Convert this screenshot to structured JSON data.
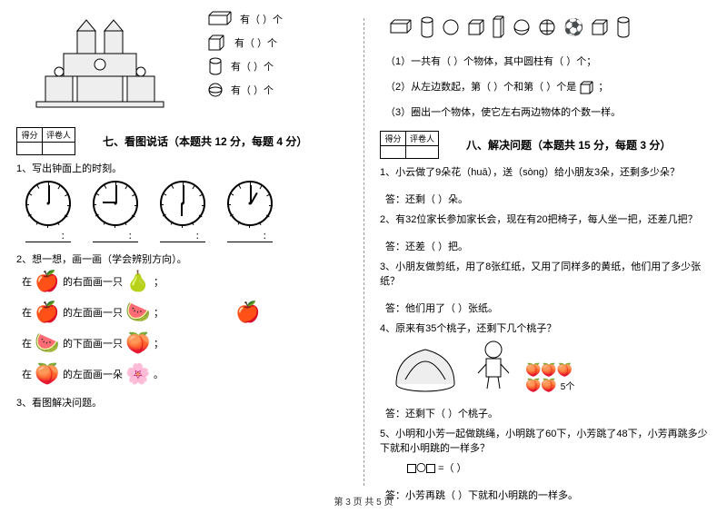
{
  "footer": "第 3 页 共 5 页",
  "left": {
    "shapes": {
      "cuboid": "有（      ）个",
      "cube": "有（      ）个",
      "cylinder": "有（      ）个",
      "sphere": "有（      ）个"
    },
    "score": {
      "c1": "得分",
      "c2": "评卷人"
    },
    "section7": "七、看图说话（本题共 12 分，每题 4 分）",
    "q1": "1、写出钟面上的时刻。",
    "colon": "：",
    "q2": "2、想一想，画一画（学会辨别方向）。",
    "fruit": {
      "r1a": "在",
      "r1b": "的右面画一只",
      "r1c": "；",
      "r2a": "在",
      "r2b": "的左面画一只",
      "r2c": "；",
      "r3a": "在",
      "r3b": "的下面画一只",
      "r3c": "；",
      "r4a": "在",
      "r4b": "的左面画一朵",
      "r4c": "。"
    },
    "q3": "3、看图解决问题。"
  },
  "right": {
    "top": {
      "l1": "（1）一共有（    ）个物体，其中圆柱有（    ）个；",
      "l2a": "（2）从左边数起，第（    ）个和第（    ）个是",
      "l2b": "；",
      "l3": "（3）圈出一个物体，使它左右两边物体的个数一样。"
    },
    "score": {
      "c1": "得分",
      "c2": "评卷人"
    },
    "section8": "八、解决问题（本题共 15 分，每题 3 分）",
    "q1": "1、小云做了9朵花（huā），送（sòng）给小朋友3朵，还剩多少朵？",
    "a1": "答：还剩（    ）朵。",
    "q2": "2、有32位家长参加家长会，现在有20把椅子，每人坐一把，还差几把？",
    "a2": "答：还差（    ）把。",
    "q3": "3、小朋友做剪纸，用了8张红纸，又用了同样多的黄纸，他们用了多少张纸？",
    "a3": "答：他们用了（    ）张纸。",
    "q4": "4、原来有35个桃子，还剩下几个桃子？",
    "a4": "答：还剩下（    ）个桃子。",
    "q5": "5、小明和小芳一起做跳绳，小明跳了60下，小芳跳了48下，小芳再跳多少下就和小明跳的一样多？",
    "eq": "=（    ）",
    "a5": "答：小芳再跳（    ）下就和小明跳的一样多。",
    "basket_label": "5个"
  }
}
